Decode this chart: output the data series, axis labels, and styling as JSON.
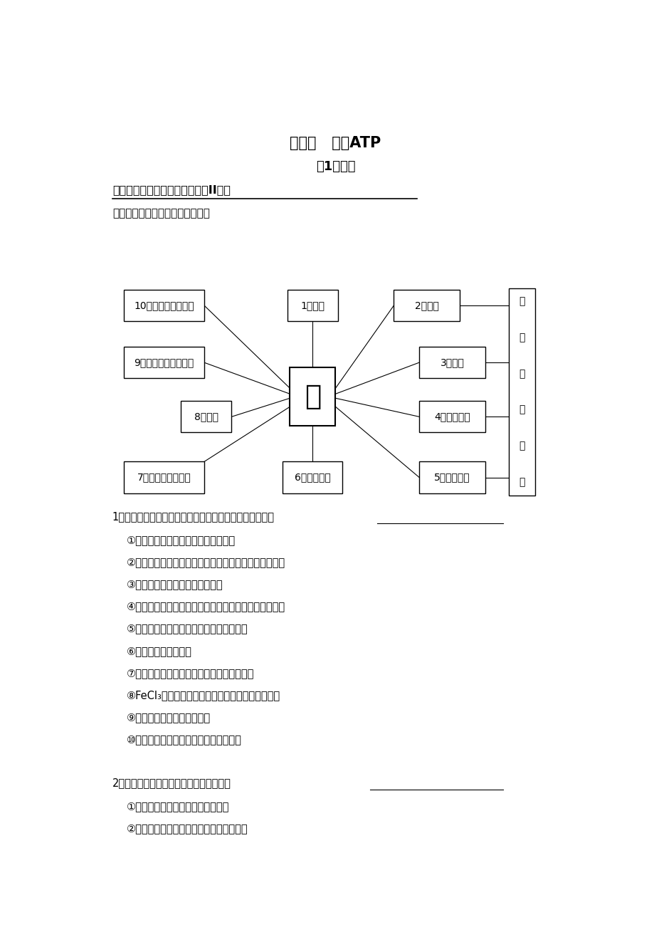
{
  "title1": "专题四   酶和ATP",
  "title2": "第1课时酶",
  "req_label": "考纲要求：",
  "req_text": "酶在代谢中的作用（II）。",
  "intro_text": "请按下列提纲复习酶的相关内容：",
  "center_text": "酶",
  "q1_header": "1、酶是由活细胞产生的。下列关于酶的叙述中，正确的是",
  "q1_items": [
    "①经蛋白酶处理后所有酶的活性均下降",
    "②酶的催化效率很高是因其大大增加了反应物之间的接触",
    "③酶的数量因参与化学反应而减少",
    "④只要条件适宜，酶在生物体外也可催化相应的化学反应",
    "⑤温度过高和偏低对酶活性影响的原理相同",
    "⑥酶的合成都需要模板",
    "⑦同一种酶可存在于分化程度不同的活细胞中",
    "⑧FeCl₃溶液和过氧化氢酶均能降低化学反应活化能",
    "⑨不同酶的最适温度可能相同",
    "⑩酶活性最高时的温度不适合该酶的保存"
  ],
  "q2_header": "2、下列关于酶与激素的叙述中，正确的是",
  "q2_items": [
    "①能产生酶的细胞不一定能产生激素",
    "②胰岛素和淀粉酶可以在同一个细胞中产生"
  ],
  "bg_color": "#ffffff",
  "text_color": "#000000"
}
